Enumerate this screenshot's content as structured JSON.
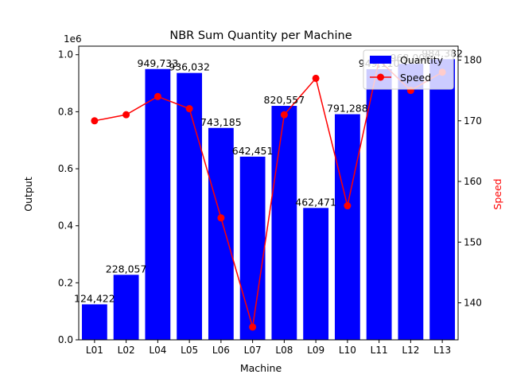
{
  "chart_data": {
    "type": "bar+line",
    "title": "NBR Sum Quantity per Machine",
    "xlabel": "Machine",
    "ylabel": "Output",
    "y2label": "Speed",
    "y_offset_label": "1e6",
    "categories": [
      "L01",
      "L02",
      "L04",
      "L05",
      "L06",
      "L07",
      "L08",
      "L09",
      "L10",
      "L11",
      "L12",
      "L13"
    ],
    "ylim": [
      0,
      1030000
    ],
    "yticks": [
      0,
      200000,
      400000,
      600000,
      800000,
      1000000
    ],
    "ytick_labels": [
      "0.0",
      "0.2",
      "0.4",
      "0.6",
      "0.8",
      "1.0"
    ],
    "y2lim": [
      133.9,
      182.3
    ],
    "y2ticks": [
      140,
      150,
      160,
      170,
      180
    ],
    "y2tick_labels": [
      "140",
      "150",
      "160",
      "170",
      "180"
    ],
    "legend_position": "upper-right",
    "grid": false,
    "series": [
      {
        "name": "Quantity",
        "kind": "bar",
        "axis": "left",
        "color": "#0000ff",
        "values": [
          124422,
          228057,
          949733,
          936032,
          743185,
          642451,
          820557,
          462471,
          791288,
          949110,
          968000,
          984382
        ],
        "labels": [
          "124,422",
          "228,057",
          "949,733",
          "936,032",
          "743,185",
          "642,451",
          "820,557",
          "462,471",
          "791,288",
          "949,110",
          "968,000",
          "984,382"
        ]
      },
      {
        "name": "Speed",
        "kind": "line",
        "axis": "right",
        "color": "#ff0000",
        "values": [
          170,
          171,
          174,
          172,
          154,
          136,
          171,
          177,
          156,
          180,
          175,
          178
        ]
      }
    ]
  }
}
